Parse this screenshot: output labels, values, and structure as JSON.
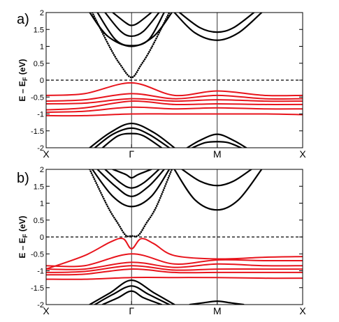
{
  "chart_data": [
    {
      "type": "line",
      "panel_label": "a)",
      "ylabel": "E – E_F (eV)",
      "ylabel_main": "E – E",
      "ylabel_sub": "F",
      "ylabel_unit": "(eV)",
      "ylim": [
        -2,
        2
      ],
      "xlim": [
        0,
        1
      ],
      "yticks": [
        -2,
        -1.5,
        -1,
        -0.5,
        0,
        0.5,
        1,
        1.5,
        2
      ],
      "ytick_labels": [
        "-2",
        "-1.5",
        "-1",
        "-0.5",
        "0",
        "0.5",
        "1",
        "1.5",
        "2"
      ],
      "xticks": [
        0,
        0.333,
        0.667,
        1
      ],
      "xtick_labels": [
        "X",
        "Γ",
        "M",
        "X"
      ],
      "fermi_level": 0,
      "colors": {
        "conduction": "#000000",
        "flat_bands": "#e8141c",
        "fermi": "#000000"
      },
      "series": [
        {
          "group": "conduction",
          "style": "dotted",
          "x": [
            0.18,
            0.25,
            0.29,
            0.333,
            0.37,
            0.41,
            0.48
          ],
          "y": [
            2.0,
            0.95,
            0.45,
            0.08,
            0.45,
            0.95,
            2.0
          ]
        },
        {
          "group": "conduction",
          "style": "solid",
          "x": [
            0.17,
            0.24,
            0.333,
            0.42,
            0.49
          ],
          "y": [
            2.0,
            1.3,
            1.0,
            1.3,
            2.0
          ]
        },
        {
          "group": "conduction",
          "style": "solid",
          "x": [
            0.2,
            0.27,
            0.333,
            0.4,
            0.46
          ],
          "y": [
            2.0,
            1.2,
            1.02,
            1.2,
            2.0
          ]
        },
        {
          "group": "conduction",
          "style": "solid",
          "x": [
            0.23,
            0.29,
            0.333,
            0.38,
            0.44
          ],
          "y": [
            2.0,
            1.45,
            1.3,
            1.45,
            2.0
          ]
        },
        {
          "group": "conduction",
          "style": "solid",
          "x": [
            0.26,
            0.31,
            0.333,
            0.36,
            0.41
          ],
          "y": [
            2.0,
            1.7,
            1.62,
            1.7,
            2.0
          ]
        },
        {
          "group": "conduction",
          "style": "solid",
          "x": [
            0.5,
            0.58,
            0.667,
            0.75,
            0.84
          ],
          "y": [
            2.0,
            1.4,
            1.18,
            1.4,
            2.0
          ]
        },
        {
          "group": "conduction",
          "style": "solid",
          "x": [
            0.52,
            0.6,
            0.667,
            0.73,
            0.81
          ],
          "y": [
            2.0,
            1.55,
            1.42,
            1.55,
            2.0
          ]
        },
        {
          "group": "flat_bands",
          "style": "solid",
          "x": [
            0,
            0.15,
            0.333,
            0.5,
            0.667,
            0.85,
            1
          ],
          "y": [
            -0.45,
            -0.4,
            -0.08,
            -0.45,
            -0.32,
            -0.45,
            -0.45
          ]
        },
        {
          "group": "flat_bands",
          "style": "solid",
          "x": [
            0,
            0.15,
            0.333,
            0.5,
            0.667,
            0.85,
            1
          ],
          "y": [
            -0.62,
            -0.58,
            -0.4,
            -0.55,
            -0.45,
            -0.55,
            -0.55
          ]
        },
        {
          "group": "flat_bands",
          "style": "solid",
          "x": [
            0,
            0.15,
            0.333,
            0.5,
            0.667,
            0.85,
            1
          ],
          "y": [
            -0.7,
            -0.68,
            -0.55,
            -0.62,
            -0.58,
            -0.62,
            -0.62
          ]
        },
        {
          "group": "flat_bands",
          "style": "solid",
          "x": [
            0,
            0.15,
            0.333,
            0.5,
            0.667,
            0.85,
            1
          ],
          "y": [
            -0.88,
            -0.82,
            -0.62,
            -0.72,
            -0.7,
            -0.72,
            -0.72
          ]
        },
        {
          "group": "flat_bands",
          "style": "solid",
          "x": [
            0,
            0.15,
            0.333,
            0.5,
            0.667,
            0.85,
            1
          ],
          "y": [
            -0.95,
            -0.92,
            -0.8,
            -0.85,
            -0.82,
            -0.85,
            -0.85
          ]
        },
        {
          "group": "flat_bands",
          "style": "solid",
          "x": [
            0,
            0.15,
            0.333,
            0.5,
            0.667,
            0.85,
            1
          ],
          "y": [
            -1.05,
            -1.05,
            -1.0,
            -1.0,
            -1.0,
            -1.0,
            -1.02
          ]
        },
        {
          "group": "conduction",
          "style": "solid",
          "x": [
            0.17,
            0.25,
            0.333,
            0.42,
            0.5
          ],
          "y": [
            -2.0,
            -1.55,
            -1.28,
            -1.55,
            -2.0
          ]
        },
        {
          "group": "conduction",
          "style": "solid",
          "x": [
            0.19,
            0.26,
            0.333,
            0.4,
            0.48
          ],
          "y": [
            -2.0,
            -1.6,
            -1.42,
            -1.6,
            -2.0
          ]
        },
        {
          "group": "conduction",
          "style": "solid",
          "x": [
            0.22,
            0.28,
            0.333,
            0.38,
            0.45
          ],
          "y": [
            -2.0,
            -1.65,
            -1.58,
            -1.65,
            -2.0
          ]
        },
        {
          "group": "conduction",
          "style": "solid",
          "x": [
            0.55,
            0.6,
            0.667,
            0.73,
            0.78
          ],
          "y": [
            -2.0,
            -1.78,
            -1.6,
            -1.78,
            -2.0
          ]
        },
        {
          "group": "conduction",
          "style": "solid",
          "x": [
            0.57,
            0.62,
            0.667,
            0.71,
            0.76
          ],
          "y": [
            -2.0,
            -1.85,
            -1.82,
            -1.85,
            -2.0
          ]
        }
      ]
    },
    {
      "type": "line",
      "panel_label": "b)",
      "ylabel": "E – E_F (eV)",
      "ylabel_main": "E – E",
      "ylabel_sub": "F",
      "ylabel_unit": "(eV)",
      "ylim": [
        -2,
        2
      ],
      "xlim": [
        0,
        1
      ],
      "yticks": [
        -2,
        -1.5,
        -1,
        -0.5,
        0,
        0.5,
        1,
        1.5,
        2
      ],
      "ytick_labels": [
        "-2",
        "-1.5",
        "-1",
        "-0.5",
        "0",
        "0.5",
        "1",
        "1.5",
        "2"
      ],
      "xticks": [
        0,
        0.333,
        0.667,
        1
      ],
      "xtick_labels": [
        "X",
        "Γ",
        "M",
        "X"
      ],
      "fermi_level": 0,
      "colors": {
        "conduction": "#000000",
        "flat_bands": "#e8141c",
        "fermi": "#000000"
      },
      "series": [
        {
          "group": "conduction",
          "style": "dotted",
          "x": [
            0.17,
            0.24,
            0.28,
            0.31,
            0.333,
            0.36,
            0.39,
            0.43,
            0.49
          ],
          "y": [
            2.0,
            0.9,
            0.4,
            0.05,
            0.03,
            0.05,
            0.4,
            0.9,
            2.0
          ]
        },
        {
          "group": "conduction",
          "style": "solid",
          "x": [
            0.18,
            0.26,
            0.333,
            0.41,
            0.48
          ],
          "y": [
            2.0,
            1.2,
            0.9,
            1.2,
            2.0
          ]
        },
        {
          "group": "conduction",
          "style": "solid",
          "x": [
            0.2,
            0.27,
            0.333,
            0.4,
            0.46
          ],
          "y": [
            2.0,
            1.5,
            1.2,
            1.5,
            2.0
          ]
        },
        {
          "group": "conduction",
          "style": "solid",
          "x": [
            0.23,
            0.29,
            0.333,
            0.38,
            0.44
          ],
          "y": [
            2.0,
            1.6,
            1.45,
            1.6,
            2.0
          ]
        },
        {
          "group": "conduction",
          "style": "solid",
          "x": [
            0.26,
            0.31,
            0.333,
            0.36,
            0.41
          ],
          "y": [
            2.0,
            1.85,
            1.75,
            1.85,
            2.0
          ]
        },
        {
          "group": "conduction",
          "style": "solid",
          "x": [
            0.5,
            0.58,
            0.667,
            0.75,
            0.84
          ],
          "y": [
            2.0,
            1.1,
            0.8,
            1.1,
            2.0
          ]
        },
        {
          "group": "conduction",
          "style": "solid",
          "x": [
            0.53,
            0.6,
            0.667,
            0.73,
            0.8
          ],
          "y": [
            2.0,
            1.65,
            1.52,
            1.65,
            2.0
          ]
        },
        {
          "group": "flat_bands",
          "style": "solid",
          "x": [
            0,
            0.15,
            0.25,
            0.3,
            0.333,
            0.37,
            0.42,
            0.5,
            0.667,
            0.85,
            1
          ],
          "y": [
            -0.95,
            -0.55,
            -0.15,
            -0.05,
            -0.35,
            -0.05,
            -0.2,
            -0.55,
            -0.65,
            -0.6,
            -0.58
          ]
        },
        {
          "group": "flat_bands",
          "style": "solid",
          "x": [
            0,
            0.15,
            0.333,
            0.5,
            0.667,
            0.85,
            1
          ],
          "y": [
            -0.85,
            -0.85,
            -0.5,
            -0.8,
            -0.68,
            -0.7,
            -0.7
          ]
        },
        {
          "group": "flat_bands",
          "style": "solid",
          "x": [
            0,
            0.15,
            0.333,
            0.5,
            0.667,
            0.85,
            1
          ],
          "y": [
            -0.95,
            -0.95,
            -0.75,
            -0.9,
            -0.8,
            -0.85,
            -0.85
          ]
        },
        {
          "group": "flat_bands",
          "style": "solid",
          "x": [
            0,
            0.15,
            0.333,
            0.5,
            0.667,
            0.85,
            1
          ],
          "y": [
            -1.05,
            -1.02,
            -0.85,
            -0.98,
            -0.95,
            -0.95,
            -0.95
          ]
        },
        {
          "group": "flat_bands",
          "style": "solid",
          "x": [
            0,
            0.15,
            0.333,
            0.5,
            0.667,
            0.85,
            1
          ],
          "y": [
            -1.12,
            -1.1,
            -0.95,
            -1.05,
            -1.05,
            -1.05,
            -1.05
          ]
        },
        {
          "group": "flat_bands",
          "style": "solid",
          "x": [
            0,
            0.15,
            0.333,
            0.5,
            0.667,
            0.85,
            1
          ],
          "y": [
            -1.25,
            -1.25,
            -1.2,
            -1.2,
            -1.2,
            -1.22,
            -1.22
          ]
        },
        {
          "group": "conduction",
          "style": "solid",
          "x": [
            0.17,
            0.25,
            0.333,
            0.42,
            0.5
          ],
          "y": [
            -2.0,
            -1.65,
            -1.28,
            -1.65,
            -2.0
          ]
        },
        {
          "group": "conduction",
          "style": "solid",
          "x": [
            0.19,
            0.26,
            0.333,
            0.4,
            0.48
          ],
          "y": [
            -2.0,
            -1.7,
            -1.45,
            -1.7,
            -2.0
          ]
        },
        {
          "group": "conduction",
          "style": "solid",
          "x": [
            0.22,
            0.28,
            0.333,
            0.38,
            0.45
          ],
          "y": [
            -2.0,
            -1.8,
            -1.6,
            -1.8,
            -2.0
          ]
        },
        {
          "group": "conduction",
          "style": "solid",
          "x": [
            0.56,
            0.61,
            0.667,
            0.72,
            0.77
          ],
          "y": [
            -2.0,
            -1.95,
            -1.9,
            -1.95,
            -2.0
          ]
        }
      ]
    }
  ]
}
